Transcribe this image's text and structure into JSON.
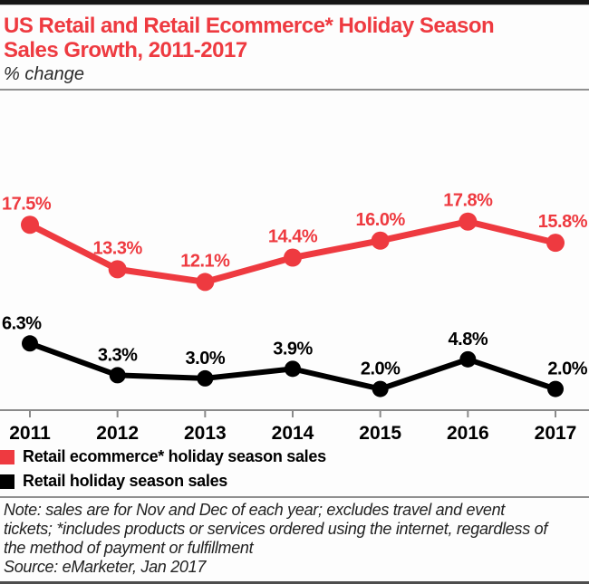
{
  "header": {
    "title": "US Retail and Retail Ecommerce* Holiday Season Sales Growth, 2011-2017",
    "subtitle": "% change"
  },
  "chart_data": {
    "type": "line",
    "title": "US Retail and Retail Ecommerce* Holiday Season Sales Growth, 2011-2017",
    "ylabel": "% change",
    "xlabel": "",
    "categories": [
      "2011",
      "2012",
      "2013",
      "2014",
      "2015",
      "2016",
      "2017"
    ],
    "series": [
      {
        "name": "Retail ecommerce* holiday season sales",
        "color": "#ee3a40",
        "values": [
          17.5,
          13.3,
          12.1,
          14.4,
          16.0,
          17.8,
          15.8
        ],
        "labels": [
          "17.5%",
          "13.3%",
          "12.1%",
          "14.4%",
          "16.0%",
          "17.8%",
          "15.8%"
        ]
      },
      {
        "name": "Retail holiday season sales",
        "color": "#000000",
        "values": [
          6.3,
          3.3,
          3.0,
          3.9,
          2.0,
          4.8,
          2.0
        ],
        "labels": [
          "6.3%",
          "3.3%",
          "3.0%",
          "3.9%",
          "2.0%",
          "4.8%",
          "2.0%"
        ]
      }
    ],
    "ylim": [
      0,
      22
    ],
    "grid": false,
    "data_labels": true,
    "legend_position": "bottom-left",
    "axis_color": "#8a8a8a"
  },
  "legend": {
    "items": [
      {
        "label": "Retail ecommerce* holiday season sales",
        "color": "#ee3a40"
      },
      {
        "label": "Retail holiday season sales",
        "color": "#000000"
      }
    ]
  },
  "footer": {
    "note": "Note: sales are for Nov and Dec of each year; excludes travel and event tickets; *includes products or services ordered using the internet, regardless of the method of payment or fulfillment",
    "source": "Source: eMarketer, Jan 2017"
  },
  "colors": {
    "accent_red": "#ee3a40",
    "line_black": "#000000",
    "axis_gray": "#8a8a8a"
  }
}
